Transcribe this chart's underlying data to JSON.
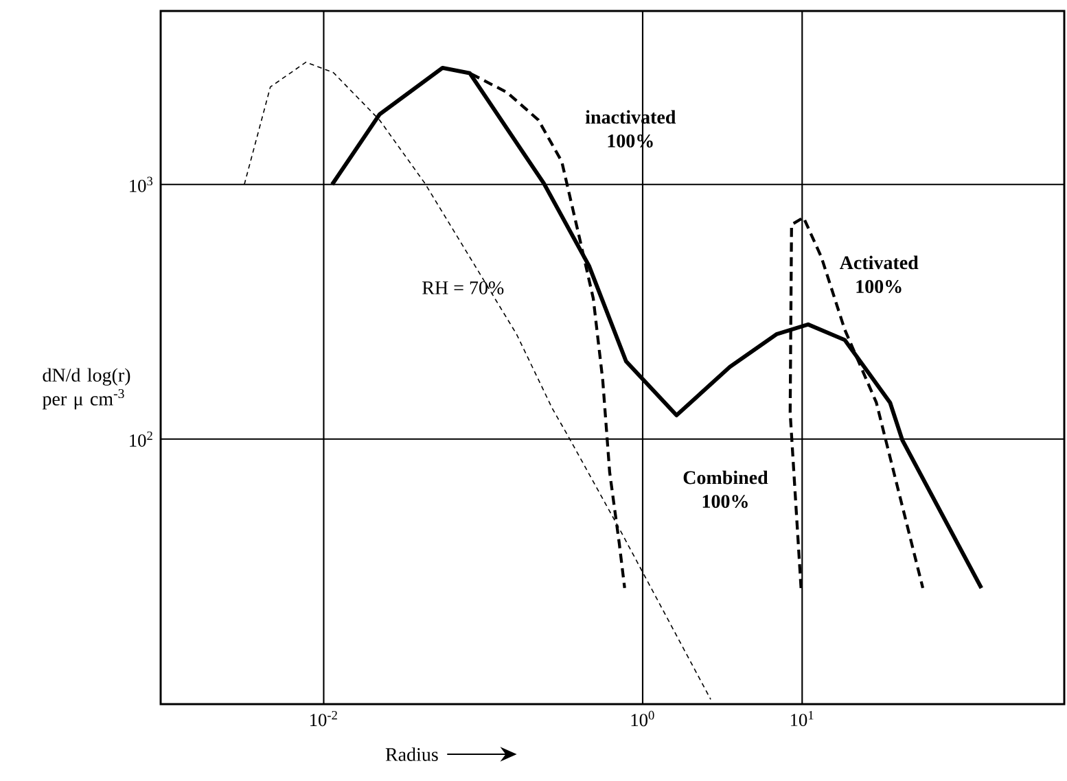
{
  "chart_data": {
    "type": "line",
    "xlabel": "Radius",
    "ylabel": "dN/d log(r) per μ cm$^{-3}$",
    "log": "xy",
    "grid": true,
    "xlim": [
      0.00095,
      440
    ],
    "ylim": [
      9.1,
      4800
    ],
    "xticks": [
      {
        "value": 0.01,
        "label": "10$^{-2}$"
      },
      {
        "value": 1,
        "label": "10$^{0}$"
      },
      {
        "value": 10,
        "label": "10$^{1}$"
      }
    ],
    "yticks": [
      {
        "value": 100,
        "label": "10$^{2}$"
      },
      {
        "value": 1000,
        "label": "10$^{3}$"
      }
    ],
    "series": [
      {
        "name": "RH = 70%",
        "color": "#000000",
        "line_style": "dotted",
        "x": [
          0.00318,
          0.00463,
          0.00774,
          0.0115,
          0.0224,
          0.0431,
          0.0824,
          0.162,
          0.271,
          0.343,
          0.741,
          2.67
        ],
        "values": [
          1000,
          2416,
          3020,
          2750,
          1790,
          1010,
          518,
          258,
          132,
          102,
          42.6,
          9.5
        ]
      },
      {
        "color": "#000000",
        "line_style": "solid",
        "x": [
          0.0113,
          0.0224,
          0.0556,
          0.0824,
          0.24,
          0.461,
          0.787,
          1.63,
          3.52,
          6.9,
          10.9,
          18.5,
          35.6,
          42.5,
          133
        ],
        "values": [
          1000,
          1885,
          2870,
          2735,
          1010,
          479,
          202,
          124,
          192,
          258,
          282,
          245,
          139,
          99,
          26
        ]
      },
      {
        "color": "#000000",
        "line_style": "dashed",
        "x": [
          0.0556,
          0.0824,
          0.141,
          0.222,
          0.311,
          0.402,
          0.49,
          0.562,
          0.621,
          0.713,
          0.771
        ],
        "values": [
          2870,
          2735,
          2300,
          1790,
          1230,
          615,
          357,
          170,
          74,
          39,
          26
        ]
      },
      {
        "color": "#000000",
        "line_style": "dashed",
        "x": [
          9.84,
          8.41,
          8.58,
          10.2,
          13.2,
          18.5,
          29.2,
          57.1
        ],
        "values": [
          26,
          127,
          695,
          742,
          518,
          269,
          139,
          26
        ]
      }
    ],
    "annotations": [
      "inactivated 100%",
      "Activated 100%",
      "Combined 100%"
    ]
  }
}
